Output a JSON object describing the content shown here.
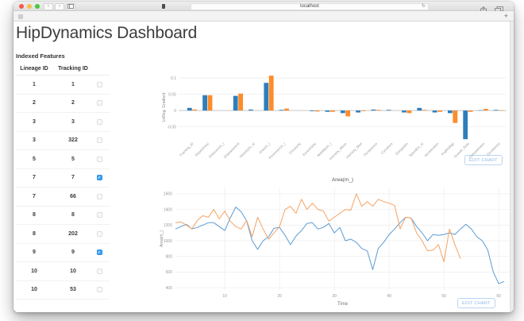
{
  "browser": {
    "url": "localhost",
    "new_tab": "+"
  },
  "page": {
    "title": "HipDynamics Dashboard",
    "edit_chart_label": "EDIT CHART",
    "sidebar": {
      "heading": "Indexed Features",
      "columns": [
        "Lineage ID",
        "Tracking ID"
      ],
      "rows": [
        {
          "lineage": "1",
          "tracking": "1",
          "checked": false
        },
        {
          "lineage": "2",
          "tracking": "2",
          "checked": false
        },
        {
          "lineage": "3",
          "tracking": "3",
          "checked": false
        },
        {
          "lineage": "3",
          "tracking": "322",
          "checked": false
        },
        {
          "lineage": "5",
          "tracking": "5",
          "checked": false
        },
        {
          "lineage": "7",
          "tracking": "7",
          "checked": true
        },
        {
          "lineage": "7",
          "tracking": "66",
          "checked": false
        },
        {
          "lineage": "8",
          "tracking": "8",
          "checked": false
        },
        {
          "lineage": "8",
          "tracking": "202",
          "checked": false
        },
        {
          "lineage": "9",
          "tracking": "9",
          "checked": true
        },
        {
          "lineage": "10",
          "tracking": "10",
          "checked": false
        },
        {
          "lineage": "10",
          "tracking": "53",
          "checked": false
        }
      ]
    }
  },
  "colors": {
    "bar_blue": "#2e7ebc",
    "bar_orange": "#ff8b2a",
    "line_blue": "#5b9bd5",
    "line_orange": "#f6a262",
    "checkbox_checked": "#3aa0f2"
  },
  "chart_data": [
    {
      "type": "bar",
      "title": "",
      "ylabel": "LnReg. Gradient",
      "yticks": [
        0.1,
        0.05,
        0,
        -0.05
      ],
      "ylim": [
        -0.09,
        0.11
      ],
      "grid": true,
      "legend": "none",
      "categories": [
        "Tracking_ID",
        "Slope(Area)",
        "Distance(m_)",
        "Displacement",
        "Velocity(m_s)",
        "Area(m_)",
        "Perimeter(m_)",
        "Circularity",
        "Eccentricity",
        "Mobility(m_)",
        "Intensity_Mean",
        "Intensity_Max",
        "Persistence",
        "Curvature",
        "Elongation",
        "Speed(m_s)",
        "Acceleration",
        "Angle(deg)",
        "Growth_Rate",
        "Compactness",
        "Duration(s)"
      ],
      "series": [
        {
          "name": "series-1",
          "color": "#2e7ebc",
          "values": [
            0.008,
            0.047,
            0,
            0.045,
            0.003,
            0.085,
            0.002,
            0,
            -0.002,
            -0.004,
            -0.008,
            -0.006,
            0.003,
            0.002,
            -0.006,
            0.008,
            -0.006,
            -0.008,
            -0.088,
            0.001,
            0.002
          ]
        },
        {
          "name": "series-2",
          "color": "#ff8b2a",
          "values": [
            0.003,
            0.047,
            0,
            0.052,
            0,
            0.107,
            0.006,
            0,
            -0.003,
            -0.004,
            -0.018,
            -0.002,
            0.002,
            0,
            -0.008,
            0.002,
            -0.004,
            -0.038,
            -0.004,
            0.005,
            0.001
          ]
        }
      ]
    },
    {
      "type": "line",
      "title": "Area(m_)",
      "xlabel": "Time",
      "ylabel": "Area(m_)",
      "xticks": [
        10,
        20,
        30,
        40,
        50,
        60
      ],
      "yticks": [
        400,
        600,
        800,
        1000,
        1200,
        1400,
        1600
      ],
      "xlim": [
        1,
        62
      ],
      "ylim": [
        370,
        1680
      ],
      "grid": true,
      "legend": "none",
      "series": [
        {
          "name": "series-1",
          "color": "#5b9bd5",
          "x_start": 1,
          "values": [
            1150,
            1180,
            1210,
            1150,
            1170,
            1200,
            1230,
            1230,
            1180,
            1130,
            1290,
            1430,
            1370,
            1250,
            1000,
            890,
            1000,
            1050,
            1160,
            1170,
            1070,
            950,
            1060,
            1130,
            1220,
            1230,
            1150,
            1170,
            1220,
            1100,
            1170,
            1000,
            1020,
            980,
            900,
            870,
            630,
            900,
            980,
            1080,
            1150,
            1230,
            1300,
            1290,
            1180,
            1100,
            1000,
            1080,
            1070,
            1080,
            1100,
            1080,
            1150,
            1210,
            1150,
            1050,
            1000,
            880,
            600,
            450,
            480
          ]
        },
        {
          "name": "series-2",
          "color": "#f6a262",
          "x_start": 1,
          "values": [
            1230,
            1240,
            1200,
            1150,
            1260,
            1320,
            1300,
            1400,
            1280,
            1380,
            1250,
            1180,
            1150,
            1260,
            1050,
            1300,
            1150,
            1020,
            1100,
            1180,
            1400,
            1440,
            1350,
            1530,
            1400,
            1480,
            1400,
            1380,
            1250,
            1300,
            1350,
            1400,
            1390,
            1600,
            1440,
            1500,
            1440,
            1530,
            1500,
            1480,
            1450,
            1150,
            1300,
            1290,
            1100,
            1000,
            870,
            880,
            950,
            730,
            1150,
            950,
            770
          ]
        }
      ]
    }
  ]
}
